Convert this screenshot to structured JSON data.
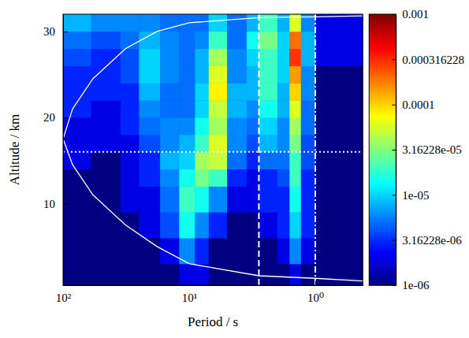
{
  "chart_data": {
    "type": "heatmap",
    "x_label": "Period / s",
    "y_label": "Altitude / km",
    "log": "x",
    "xlim": [
      100,
      0.42
    ],
    "xticks": [
      {
        "value": 100,
        "label": "10²"
      },
      {
        "value": 10,
        "label": "10¹"
      },
      {
        "value": 1,
        "label": "10⁰"
      }
    ],
    "ylim": [
      0.5,
      32
    ],
    "yticks": [
      10,
      20,
      30
    ],
    "heatmap": {
      "x_edges": [
        100,
        60,
        35,
        25,
        17,
        12,
        9,
        7,
        5,
        3.5,
        2.8,
        2,
        1.6,
        1.3,
        1,
        0.42
      ],
      "y_edges": [
        0.5,
        3,
        6,
        9,
        12,
        14,
        16,
        18,
        20,
        22,
        24,
        26,
        28,
        30,
        32
      ],
      "values": [
        [
          1e-06,
          1e-06,
          1e-06,
          1e-06,
          1e-06,
          2e-06,
          2e-06,
          1e-06,
          1e-06,
          1e-06,
          1e-06,
          1e-06,
          2e-06,
          1e-06,
          1e-06
        ],
        [
          1e-06,
          1e-06,
          1e-06,
          1e-06,
          2e-06,
          6e-06,
          3e-06,
          1e-06,
          1e-06,
          1e-06,
          1e-06,
          2e-06,
          6e-06,
          2e-06,
          1e-06
        ],
        [
          1e-06,
          1e-06,
          1e-06,
          2e-06,
          4e-06,
          1.5e-05,
          6e-06,
          3e-06,
          1e-06,
          1e-06,
          2e-06,
          3e-06,
          1e-05,
          3e-06,
          1e-06
        ],
        [
          1e-06,
          1e-06,
          2e-06,
          2e-06,
          5e-06,
          2e-05,
          1.5e-05,
          6e-06,
          2e-06,
          2e-06,
          3e-06,
          3e-06,
          1.5e-05,
          3e-06,
          1e-06
        ],
        [
          1e-06,
          1e-06,
          2e-06,
          3e-06,
          6e-06,
          1.5e-05,
          3e-05,
          2e-05,
          3e-06,
          2e-06,
          3e-06,
          4e-06,
          2e-05,
          3e-06,
          1e-06
        ],
        [
          2e-06,
          1e-06,
          2e-06,
          3e-06,
          8e-06,
          1e-05,
          4e-05,
          5e-05,
          5e-06,
          3e-06,
          5e-06,
          5e-06,
          2e-05,
          4e-06,
          1e-06
        ],
        [
          2e-06,
          2e-06,
          2e-06,
          4e-06,
          6e-06,
          8e-06,
          2e-05,
          6e-05,
          6e-06,
          4e-06,
          8e-06,
          6e-06,
          3e-05,
          4e-06,
          1e-06
        ],
        [
          2e-06,
          2e-06,
          3e-06,
          5e-06,
          6e-06,
          6e-06,
          1.5e-05,
          4e-05,
          6e-06,
          5e-06,
          1e-05,
          6e-06,
          4e-05,
          5e-06,
          1e-06
        ],
        [
          3e-06,
          2e-06,
          3e-06,
          6e-06,
          5e-06,
          5e-06,
          1e-05,
          5e-05,
          8e-06,
          6e-06,
          1.5e-05,
          8e-06,
          6e-05,
          5e-06,
          1e-06
        ],
        [
          3e-06,
          3e-06,
          3e-06,
          8e-06,
          5e-06,
          5e-06,
          1e-05,
          8e-05,
          8e-06,
          8e-06,
          2e-05,
          8e-06,
          0.0001,
          6e-06,
          1e-06
        ],
        [
          3e-06,
          3e-06,
          4e-06,
          1e-05,
          6e-06,
          5e-06,
          8e-06,
          6e-05,
          6e-06,
          8e-06,
          2e-05,
          1e-05,
          0.00015,
          6e-06,
          1e-06
        ],
        [
          4e-06,
          3e-06,
          4e-06,
          1e-05,
          6e-06,
          5e-06,
          8e-06,
          4e-05,
          6e-06,
          1e-05,
          2e-05,
          1e-05,
          0.0003,
          8e-06,
          2e-06
        ],
        [
          5e-06,
          4e-06,
          5e-06,
          8e-06,
          6e-06,
          5e-06,
          6e-06,
          2e-05,
          5e-06,
          1.5e-05,
          3e-05,
          1e-05,
          0.0002,
          8e-06,
          2e-06
        ],
        [
          8e-06,
          6e-06,
          6e-06,
          6e-06,
          5e-06,
          5e-06,
          5e-06,
          1e-05,
          5e-06,
          8e-06,
          2e-05,
          8e-06,
          6e-05,
          6e-06,
          2e-06
        ]
      ]
    },
    "colorbar": {
      "range": [
        1e-06,
        0.001
      ],
      "ticks": [
        {
          "value": 1e-06,
          "label": "1e-06"
        },
        {
          "value": 3.16228e-06,
          "label": "3.16228e-06"
        },
        {
          "value": 1e-05,
          "label": "1e-05"
        },
        {
          "value": 3.16228e-05,
          "label": "3.16228e-05"
        },
        0.0001,
        0.000316228,
        0.001
      ]
    },
    "series": [
      {
        "color": "#ffffff",
        "line_style": "solid",
        "x": [
          0.42,
          1,
          2.8,
          10,
          18,
          32,
          58,
          84,
          100,
          84,
          58,
          32,
          18,
          10,
          2.8,
          1,
          0.42
        ],
        "values": [
          31.8,
          31.7,
          31.6,
          31,
          30,
          28,
          24.5,
          21,
          17.5,
          14.5,
          11,
          7.5,
          5,
          3,
          1.6,
          1.3,
          1
        ]
      }
    ],
    "hlines": [
      {
        "value": 16,
        "line_style": "dotted",
        "color": "#ffffff"
      }
    ],
    "vlines": [
      {
        "value": 2.8,
        "line_style": "dashed",
        "color": "#ffffff"
      },
      {
        "value": 1,
        "line_style": "dashdot",
        "color": "#ffffff"
      }
    ]
  }
}
